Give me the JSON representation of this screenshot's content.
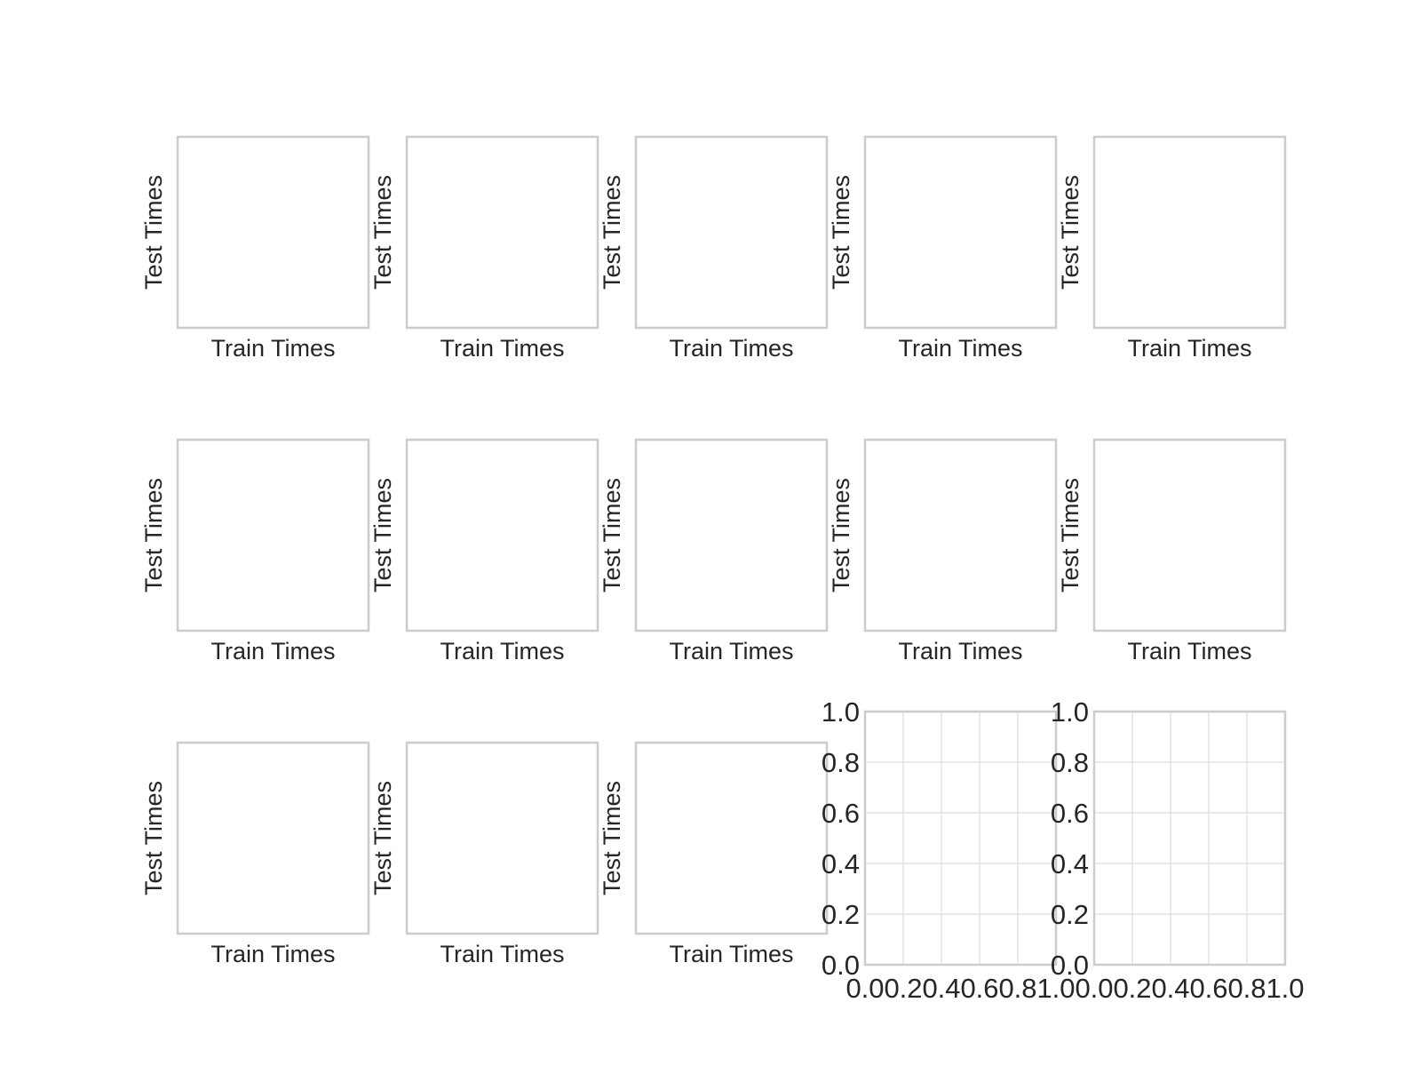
{
  "figure": {
    "grid": {
      "rows": 3,
      "cols": 5
    }
  },
  "chart_data": [
    {
      "type": "scatter",
      "xlabel": "Train Times",
      "ylabel": "Test Times",
      "ticks": false,
      "series": []
    },
    {
      "type": "scatter",
      "xlabel": "Train Times",
      "ylabel": "Test Times",
      "ticks": false,
      "series": []
    },
    {
      "type": "scatter",
      "xlabel": "Train Times",
      "ylabel": "Test Times",
      "ticks": false,
      "series": []
    },
    {
      "type": "scatter",
      "xlabel": "Train Times",
      "ylabel": "Test Times",
      "ticks": false,
      "series": []
    },
    {
      "type": "scatter",
      "xlabel": "Train Times",
      "ylabel": "Test Times",
      "ticks": false,
      "series": []
    },
    {
      "type": "scatter",
      "xlabel": "Train Times",
      "ylabel": "Test Times",
      "ticks": false,
      "series": []
    },
    {
      "type": "scatter",
      "xlabel": "Train Times",
      "ylabel": "Test Times",
      "ticks": false,
      "series": []
    },
    {
      "type": "scatter",
      "xlabel": "Train Times",
      "ylabel": "Test Times",
      "ticks": false,
      "series": []
    },
    {
      "type": "scatter",
      "xlabel": "Train Times",
      "ylabel": "Test Times",
      "ticks": false,
      "series": []
    },
    {
      "type": "scatter",
      "xlabel": "Train Times",
      "ylabel": "Test Times",
      "ticks": false,
      "series": []
    },
    {
      "type": "scatter",
      "xlabel": "Train Times",
      "ylabel": "Test Times",
      "ticks": false,
      "series": []
    },
    {
      "type": "scatter",
      "xlabel": "Train Times",
      "ylabel": "Test Times",
      "ticks": false,
      "series": []
    },
    {
      "type": "scatter",
      "xlabel": "Train Times",
      "ylabel": "Test Times",
      "ticks": false,
      "series": []
    },
    {
      "type": "scatter",
      "xlabel": "",
      "ylabel": "",
      "ticks": true,
      "grid": true,
      "xlim": [
        0,
        1
      ],
      "ylim": [
        0,
        1
      ],
      "xticks": [
        "0.0",
        "0.2",
        "0.4",
        "0.6",
        "0.8",
        "1.0"
      ],
      "yticks": [
        "0.0",
        "0.2",
        "0.4",
        "0.6",
        "0.8",
        "1.0"
      ],
      "series": []
    },
    {
      "type": "scatter",
      "xlabel": "",
      "ylabel": "",
      "ticks": true,
      "grid": true,
      "xlim": [
        0,
        1
      ],
      "ylim": [
        0,
        1
      ],
      "xticks": [
        "0.0",
        "0.2",
        "0.4",
        "0.6",
        "0.8",
        "1.0"
      ],
      "yticks": [
        "0.0",
        "0.2",
        "0.4",
        "0.6",
        "0.8",
        "1.0"
      ],
      "series": []
    }
  ],
  "colors": {
    "frame": "#cccccc",
    "grid": "#dddddd",
    "text": "#262626",
    "background": "#ffffff"
  }
}
